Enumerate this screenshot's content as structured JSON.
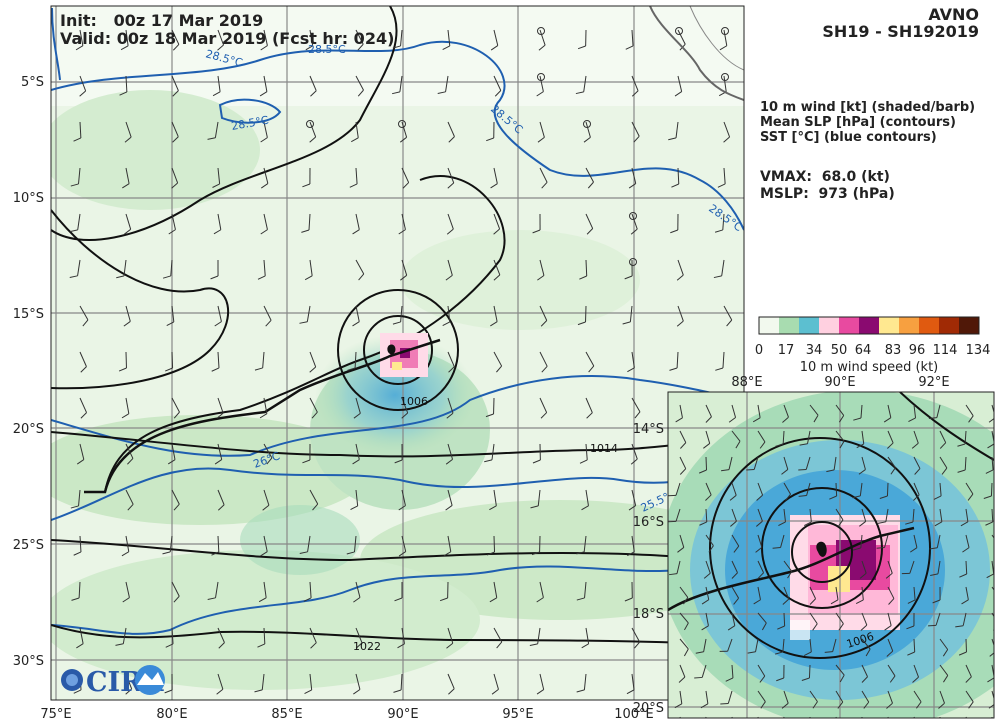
{
  "header": {
    "init": "Init:   00z 17 Mar 2019",
    "valid": "Valid: 00z 18 Mar 2019 (Fcst hr: 024)",
    "model": "AVNO",
    "storm": "SH19 - SH192019"
  },
  "legend": {
    "lines": [
      "10 m wind [kt] (shaded/barb)",
      "Mean SLP [hPa] (contours)",
      "SST [°C] (blue contours)"
    ],
    "vmax": "VMAX:  68.0 (kt)",
    "mslp": "MSLP:  973 (hPa)"
  },
  "colorbar": {
    "ticks": [
      "0",
      "17",
      "34",
      "50",
      "64",
      "83",
      "96",
      "114",
      "134"
    ],
    "label": "10 m wind speed (kt)",
    "colors": [
      "#f2f9ee",
      "#a8dcb0",
      "#5cbfd0",
      "#ffd0e0",
      "#e84aa0",
      "#8a0a70",
      "#ffe890",
      "#f7a040",
      "#e05a10",
      "#a02a05",
      "#501808"
    ]
  },
  "main_map": {
    "lat_labels": [
      "5°S",
      "10°S",
      "15°S",
      "20°S",
      "25°S",
      "30°S"
    ],
    "lon_labels": [
      "75°E",
      "80°E",
      "85°E",
      "90°E",
      "95°E",
      "100°E"
    ],
    "slp_labels": [
      "1006",
      "1014",
      "1022"
    ],
    "sst_labels": [
      "28.5°C",
      "28.5°C",
      "28.5°C",
      "28.5°C",
      "28.5°C",
      "26°C",
      "25.5°C"
    ]
  },
  "inset_map": {
    "lat_labels": [
      "14°S",
      "16°S",
      "18°S",
      "20°S"
    ],
    "lon_labels": [
      "88°E",
      "90°E",
      "92°E"
    ],
    "slp_labels": [
      "1006"
    ]
  },
  "logo": {
    "text": "CIRA"
  }
}
